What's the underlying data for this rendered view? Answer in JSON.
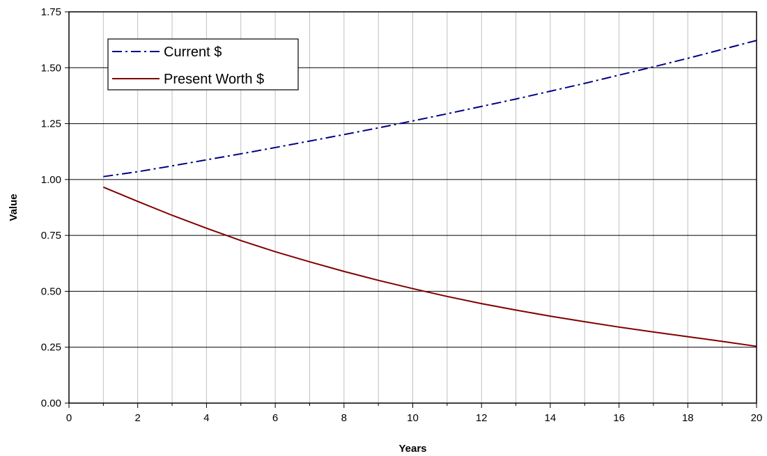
{
  "chart_data": {
    "type": "line",
    "title": "",
    "xlabel": "Years",
    "ylabel": "Value",
    "xlim": [
      0,
      20
    ],
    "ylim": [
      0,
      1.75
    ],
    "x_ticks": [
      0,
      2,
      4,
      6,
      8,
      10,
      12,
      14,
      16,
      18,
      20
    ],
    "x_tick_labels": [
      "0",
      "2",
      "4",
      "6",
      "8",
      "10",
      "12",
      "14",
      "16",
      "18",
      "20"
    ],
    "y_ticks": [
      0,
      0.25,
      0.5,
      0.75,
      1.0,
      1.25,
      1.5,
      1.75
    ],
    "y_tick_labels": [
      "0.00",
      "0.25",
      "0.50",
      "0.75",
      "1.00",
      "1.25",
      "1.50",
      "1.75"
    ],
    "grid": "both",
    "legend_position": "top-left",
    "x": [
      1,
      2,
      3,
      4,
      5,
      6,
      7,
      8,
      9,
      10,
      11,
      12,
      13,
      14,
      15,
      16,
      17,
      18,
      19,
      20
    ],
    "series": [
      {
        "name": "Current $",
        "color": "#000080",
        "style": "dash-dot",
        "values": [
          1.013,
          1.035,
          1.061,
          1.088,
          1.115,
          1.143,
          1.172,
          1.201,
          1.231,
          1.262,
          1.294,
          1.327,
          1.36,
          1.395,
          1.43,
          1.467,
          1.504,
          1.542,
          1.582,
          1.622
        ]
      },
      {
        "name": "Present Worth $",
        "color": "#800000",
        "style": "solid",
        "values": [
          0.966,
          0.902,
          0.84,
          0.782,
          0.727,
          0.677,
          0.632,
          0.589,
          0.549,
          0.512,
          0.477,
          0.445,
          0.416,
          0.389,
          0.364,
          0.34,
          0.318,
          0.297,
          0.276,
          0.254
        ]
      }
    ]
  }
}
